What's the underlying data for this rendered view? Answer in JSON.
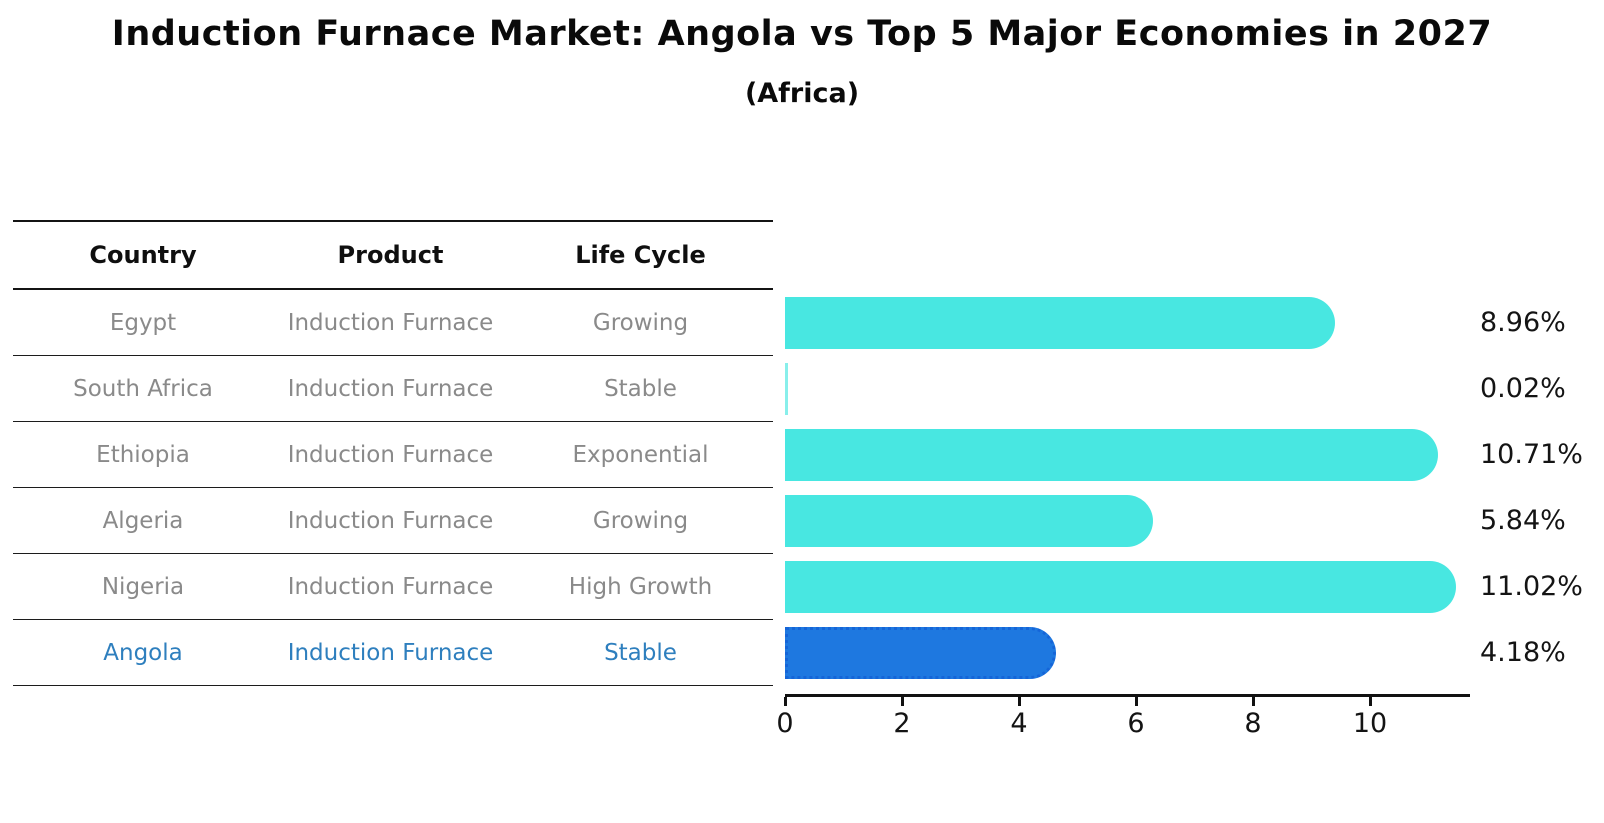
{
  "title": "Induction Furnace Market: Angola vs Top 5 Major Economies in 2027",
  "subtitle": "(Africa)",
  "table": {
    "headers": [
      "Country",
      "Product",
      "Life Cycle"
    ],
    "rows": [
      {
        "country": "Egypt",
        "product": "Induction Furnace",
        "life_cycle": "Growing",
        "highlight": false
      },
      {
        "country": "South Africa",
        "product": "Induction Furnace",
        "life_cycle": "Stable",
        "highlight": false
      },
      {
        "country": "Ethiopia",
        "product": "Induction Furnace",
        "life_cycle": "Exponential",
        "highlight": false
      },
      {
        "country": "Algeria",
        "product": "Induction Furnace",
        "life_cycle": "Growing",
        "highlight": false
      },
      {
        "country": "Nigeria",
        "product": "Induction Furnace",
        "life_cycle": "High Growth",
        "highlight": false
      },
      {
        "country": "Angola",
        "product": "Induction Furnace",
        "life_cycle": "Stable",
        "highlight": true
      }
    ]
  },
  "chart_data": {
    "type": "bar",
    "orientation": "horizontal",
    "title": "Induction Furnace Market: Angola vs Top 5 Major Economies in 2027 (Africa)",
    "categories": [
      "Egypt",
      "South Africa",
      "Ethiopia",
      "Algeria",
      "Nigeria",
      "Angola"
    ],
    "values": [
      8.96,
      0.02,
      10.71,
      5.84,
      11.02,
      4.18
    ],
    "labels": [
      "8.96%",
      "0.02%",
      "10.71%",
      "5.84%",
      "11.02%",
      "4.18%"
    ],
    "highlight_index": 5,
    "x_ticks": [
      0,
      2,
      4,
      6,
      8,
      10
    ],
    "xlim": [
      0,
      11.6
    ],
    "grid": false,
    "legend": "none",
    "colors": {
      "default_bar": "#48e7e1",
      "highlight_bar": "#1e78e0",
      "highlight_border": "#1565d8",
      "highlight_text": "#2e7fbe",
      "row_text": "#8a8a8a",
      "axis": "#111111"
    }
  }
}
